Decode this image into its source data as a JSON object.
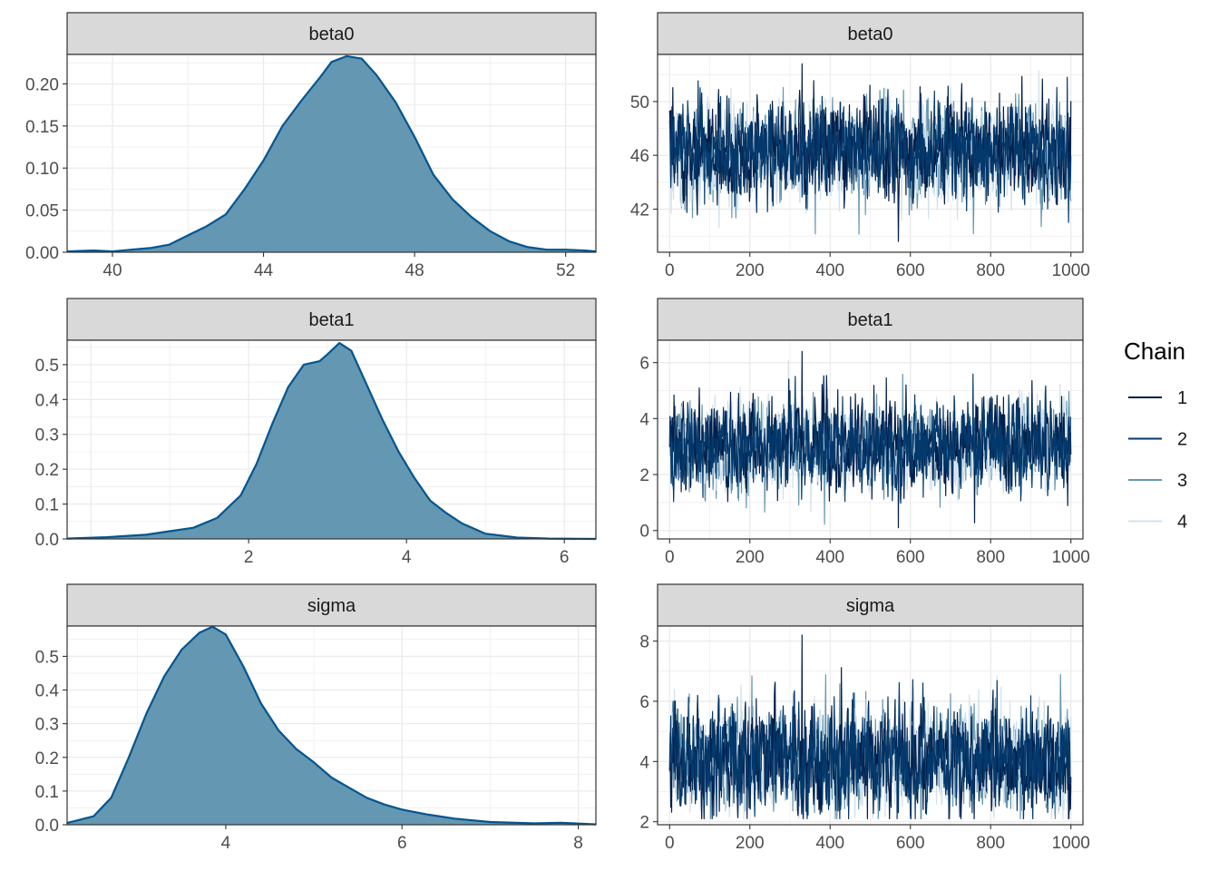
{
  "legend": {
    "title": "Chain",
    "entries": [
      {
        "label": "1",
        "color": "#011f4b"
      },
      {
        "label": "2",
        "color": "#03396c"
      },
      {
        "label": "3",
        "color": "#6497b1"
      },
      {
        "label": "4",
        "color": "#d1e1ec"
      }
    ]
  },
  "colors": {
    "density_fill": "#6497b1",
    "density_line": "#03558f",
    "strip_bg": "#d9d9d9",
    "grid": "#ebebeb"
  },
  "chart_data": [
    {
      "type": "area",
      "panel": "density",
      "title": "beta0",
      "xlim": [
        38.8,
        52.8
      ],
      "ylim": [
        0,
        0.235
      ],
      "xticks": [
        40,
        44,
        48,
        52
      ],
      "xtick_labels": [
        "40",
        "44",
        "48",
        "52"
      ],
      "yticks": [
        0,
        0.05,
        0.1,
        0.15,
        0.2
      ],
      "ytick_labels": [
        "0.00",
        "0.05",
        "0.10",
        "0.15",
        "0.20"
      ],
      "x": [
        38.8,
        39.5,
        40,
        40.5,
        41,
        41.5,
        42,
        42.5,
        43,
        43.5,
        44,
        44.5,
        45,
        45.5,
        45.8,
        46.2,
        46.6,
        47,
        47.5,
        48,
        48.5,
        49,
        49.5,
        50,
        50.5,
        51,
        51.5,
        52,
        52.5,
        52.8
      ],
      "y": [
        0.001,
        0.002,
        0.001,
        0.003,
        0.005,
        0.009,
        0.02,
        0.031,
        0.045,
        0.075,
        0.109,
        0.15,
        0.18,
        0.208,
        0.226,
        0.233,
        0.23,
        0.21,
        0.178,
        0.137,
        0.092,
        0.063,
        0.042,
        0.025,
        0.013,
        0.006,
        0.003,
        0.003,
        0.002,
        0.001
      ]
    },
    {
      "type": "line",
      "panel": "trace",
      "title": "beta0",
      "xlim": [
        -30,
        1030
      ],
      "ylim": [
        38.8,
        53.5
      ],
      "xticks": [
        0,
        200,
        400,
        600,
        800,
        1000
      ],
      "xtick_labels": [
        "0",
        "200",
        "400",
        "600",
        "800",
        "1000"
      ],
      "yticks": [
        42,
        46,
        50
      ],
      "ytick_labels": [
        "42",
        "46",
        "50"
      ],
      "iterations": 1000,
      "center": 46.2,
      "sd": 1.75,
      "extremes": [
        52.8,
        39.6
      ]
    },
    {
      "type": "area",
      "panel": "density",
      "title": "beta1",
      "xlim": [
        -0.3,
        6.4
      ],
      "ylim": [
        0,
        0.57
      ],
      "xticks": [
        2,
        4,
        6
      ],
      "xtick_labels": [
        "2",
        "4",
        "6"
      ],
      "yticks": [
        0,
        0.1,
        0.2,
        0.3,
        0.4,
        0.5
      ],
      "ytick_labels": [
        "0.0",
        "0.1",
        "0.2",
        "0.3",
        "0.4",
        "0.5"
      ],
      "x": [
        -0.3,
        0.2,
        0.7,
        1.0,
        1.3,
        1.6,
        1.9,
        2.1,
        2.3,
        2.5,
        2.7,
        2.9,
        3.0,
        3.15,
        3.3,
        3.5,
        3.7,
        3.9,
        4.1,
        4.3,
        4.5,
        4.7,
        5.0,
        5.4,
        5.8,
        6.4
      ],
      "y": [
        0.001,
        0.005,
        0.012,
        0.022,
        0.032,
        0.06,
        0.125,
        0.215,
        0.33,
        0.435,
        0.5,
        0.51,
        0.53,
        0.562,
        0.54,
        0.44,
        0.34,
        0.25,
        0.175,
        0.11,
        0.075,
        0.045,
        0.015,
        0.004,
        0.001,
        0.0
      ]
    },
    {
      "type": "line",
      "panel": "trace",
      "title": "beta1",
      "xlim": [
        -30,
        1030
      ],
      "ylim": [
        -0.3,
        6.8
      ],
      "xticks": [
        0,
        200,
        400,
        600,
        800,
        1000
      ],
      "xtick_labels": [
        "0",
        "200",
        "400",
        "600",
        "800",
        "1000"
      ],
      "yticks": [
        0,
        2,
        4,
        6
      ],
      "ytick_labels": [
        "0",
        "2",
        "4",
        "6"
      ],
      "iterations": 1000,
      "center": 3.05,
      "sd": 0.75,
      "extremes": [
        6.4,
        0.1
      ]
    },
    {
      "type": "area",
      "panel": "density",
      "title": "sigma",
      "xlim": [
        2.2,
        8.2
      ],
      "ylim": [
        0,
        0.59
      ],
      "xticks": [
        4,
        6,
        8
      ],
      "xtick_labels": [
        "4",
        "6",
        "8"
      ],
      "yticks": [
        0,
        0.1,
        0.2,
        0.3,
        0.4,
        0.5
      ],
      "ytick_labels": [
        "0.0",
        "0.1",
        "0.2",
        "0.3",
        "0.4",
        "0.5"
      ],
      "x": [
        2.2,
        2.5,
        2.7,
        2.9,
        3.1,
        3.3,
        3.5,
        3.7,
        3.85,
        4.0,
        4.2,
        4.4,
        4.6,
        4.8,
        5.0,
        5.2,
        5.4,
        5.6,
        5.8,
        6.0,
        6.3,
        6.6,
        7.0,
        7.5,
        7.8,
        8.2
      ],
      "y": [
        0.005,
        0.025,
        0.08,
        0.2,
        0.33,
        0.44,
        0.52,
        0.57,
        0.588,
        0.565,
        0.47,
        0.36,
        0.28,
        0.225,
        0.185,
        0.14,
        0.11,
        0.08,
        0.06,
        0.045,
        0.03,
        0.018,
        0.008,
        0.004,
        0.006,
        0.001
      ]
    },
    {
      "type": "line",
      "panel": "trace",
      "title": "sigma",
      "xlim": [
        -30,
        1030
      ],
      "ylim": [
        1.9,
        8.5
      ],
      "xticks": [
        0,
        200,
        400,
        600,
        800,
        1000
      ],
      "xtick_labels": [
        "0",
        "200",
        "400",
        "600",
        "800",
        "1000"
      ],
      "yticks": [
        2,
        4,
        6,
        8
      ],
      "ytick_labels": [
        "2",
        "4",
        "6",
        "8"
      ],
      "iterations": 1000,
      "center": 4.1,
      "sd": 0.85,
      "extremes": [
        8.2,
        2.3
      ]
    }
  ]
}
